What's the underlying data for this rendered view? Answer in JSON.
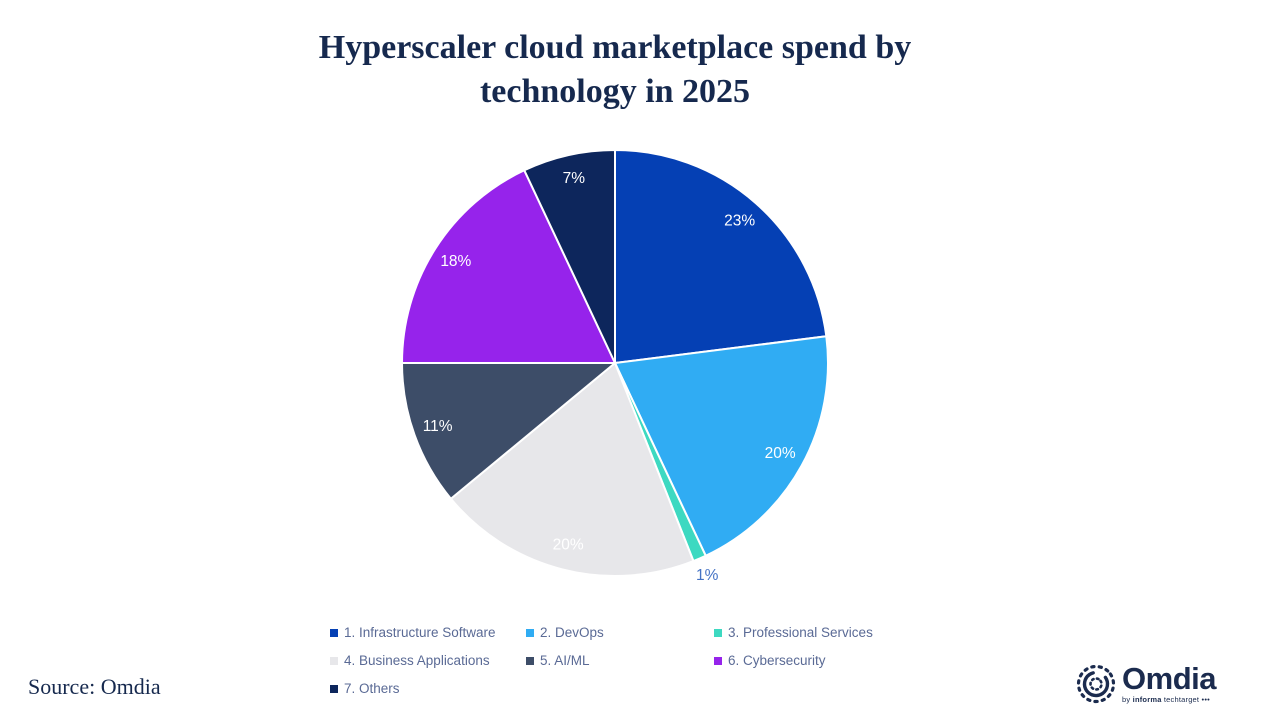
{
  "title": "Hyperscaler cloud marketplace spend by technology in 2025",
  "chart_data": {
    "type": "pie",
    "title": "Hyperscaler cloud marketplace spend by technology in 2025",
    "start_angle_deg": 0,
    "direction": "clockwise",
    "legend_position": "bottom",
    "slices": [
      {
        "label": "1. Infrastructure Software",
        "value": 23,
        "pct_label": "23%",
        "color": "#0540B4",
        "label_color": "#FFFFFF",
        "label_r": 0.885,
        "outside": false
      },
      {
        "label": "2. DevOps",
        "value": 20,
        "pct_label": "20%",
        "color": "#30ACF3",
        "label_color": "#FFFFFF",
        "label_r": 0.885,
        "outside": false
      },
      {
        "label": "3. Professional Services",
        "value": 1,
        "pct_label": "1%",
        "color": "#3DD9C1",
        "label_color": "#4472C4",
        "label_r": 1.09,
        "outside": true
      },
      {
        "label": "4. Business Applications",
        "value": 20,
        "pct_label": "20%",
        "color": "#E7E7EA",
        "label_color": "#FFFFFF",
        "label_r": 0.885,
        "outside": false
      },
      {
        "label": "5. AI/ML",
        "value": 11,
        "pct_label": "11%",
        "color": "#3D4D68",
        "label_color": "#FFFFFF",
        "label_r": 0.885,
        "outside": false
      },
      {
        "label": "6. Cybersecurity",
        "value": 18,
        "pct_label": "18%",
        "color": "#9623EB",
        "label_color": "#FFFFFF",
        "label_r": 0.885,
        "outside": false
      },
      {
        "label": "7. Others",
        "value": 7,
        "pct_label": "7%",
        "color": "#0D265C",
        "label_color": "#FFFFFF",
        "label_r": 0.885,
        "outside": false
      }
    ]
  },
  "legend": {
    "items": [
      {
        "label": "1. Infrastructure Software",
        "color": "#0540B4"
      },
      {
        "label": "2. DevOps",
        "color": "#30ACF3"
      },
      {
        "label": "3. Professional Services",
        "color": "#3DD9C1"
      },
      {
        "label": "4. Business Applications",
        "color": "#E7E7EA"
      },
      {
        "label": "5. AI/ML",
        "color": "#3D4D68"
      },
      {
        "label": "6. Cybersecurity",
        "color": "#9623EB"
      },
      {
        "label": "7. Others",
        "color": "#0D265C"
      }
    ]
  },
  "source": {
    "text": "Source: Omdia"
  },
  "logo": {
    "wordmark": "Omdia",
    "tagline_by": "by",
    "tagline_informa": "informa",
    "tagline_techtarget": "techtarget",
    "tagline_dots": "•••",
    "brand_color": "#1B2B4E"
  },
  "colors": {
    "title_text": "#16294E",
    "legend_text": "#5A6A95",
    "outside_label": "#4472C4",
    "background": "#FFFFFF",
    "slice_border": "#FFFFFF"
  }
}
